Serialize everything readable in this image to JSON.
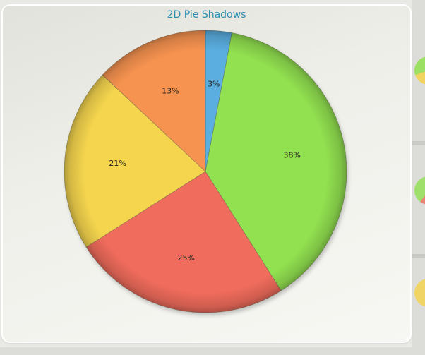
{
  "chart_data": {
    "type": "pie",
    "title": "2D Pie Shadows",
    "slices": [
      {
        "value": 3,
        "label": "3%",
        "color": "#5aaee0"
      },
      {
        "value": 38,
        "label": "38%",
        "color": "#92e150"
      },
      {
        "value": 25,
        "label": "25%",
        "color": "#f06c5c"
      },
      {
        "value": 21,
        "label": "21%",
        "color": "#f5d54e"
      },
      {
        "value": 13,
        "label": "13%",
        "color": "#f79350"
      }
    ],
    "start": "top",
    "direction": "clockwise",
    "legend": "none"
  }
}
